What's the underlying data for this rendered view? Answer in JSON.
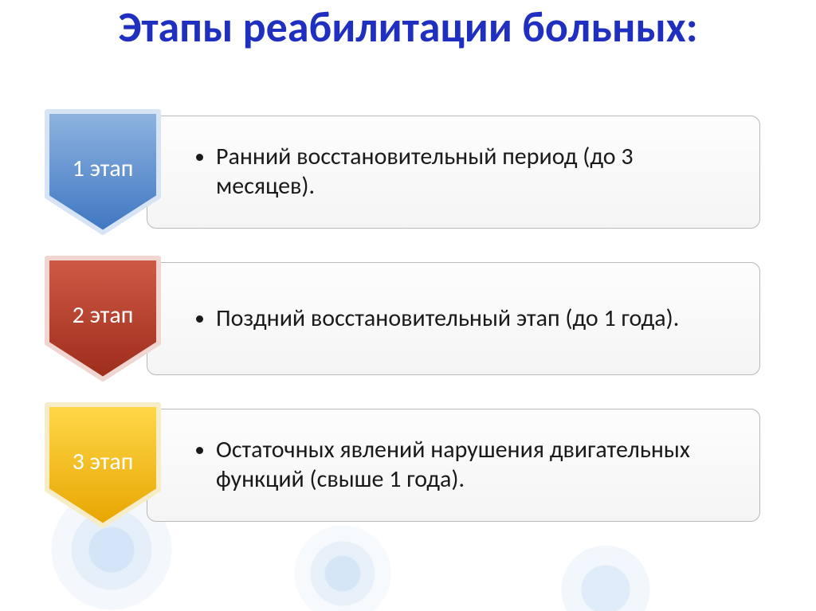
{
  "title": {
    "text": "Этапы реабилитации больных:",
    "color": "#1f2fbf",
    "fontsize": 54
  },
  "stage_label_fontsize": 30,
  "body_fontsize": 30,
  "body_color": "#1a1a1a",
  "box_border_color": "#b9b9b9",
  "box_bg_top": "#fdfdfd",
  "box_bg_bottom": "#f5f5f5",
  "stages": [
    {
      "label": "1 этап",
      "text": "Ранний восстановительный период (до 3 месяцев).",
      "color_top": "#8fb4e0",
      "color_bottom": "#3e76c1",
      "stroke": "#d6e4f5"
    },
    {
      "label": "2 этап",
      "text": "Поздний восстановительный этап (до 1 года).",
      "color_top": "#cf5a46",
      "color_bottom": "#9e2c1b",
      "stroke": "#efd6d1"
    },
    {
      "label": "3 этап",
      "text": "Остаточных явлений нарушения двигательных функций (свыше 1 года).",
      "color_top": "#ffd84a",
      "color_bottom": "#e7a500",
      "stroke": "#f7ecc8"
    }
  ]
}
